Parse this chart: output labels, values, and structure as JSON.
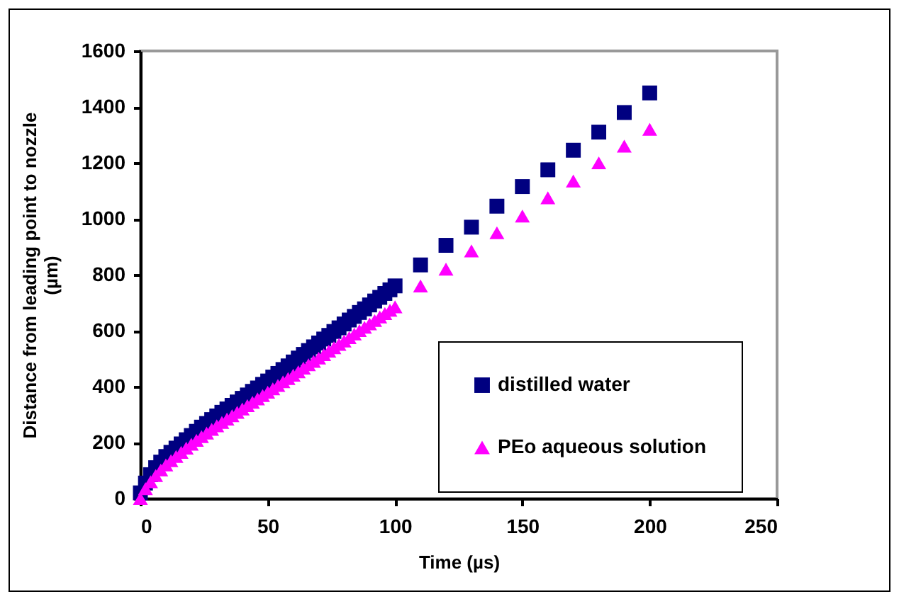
{
  "chart_data": {
    "type": "scatter",
    "xlabel": "Time (µs)",
    "ylabel": "Distance from leading point to nozzle\n(µm)",
    "x": [
      0,
      2,
      4,
      6,
      8,
      10,
      12,
      14,
      16,
      18,
      20,
      22,
      24,
      26,
      28,
      30,
      32,
      34,
      36,
      38,
      40,
      42,
      44,
      46,
      48,
      50,
      52,
      54,
      56,
      58,
      60,
      62,
      64,
      66,
      68,
      70,
      72,
      74,
      76,
      78,
      80,
      82,
      84,
      86,
      88,
      90,
      92,
      94,
      96,
      98,
      100,
      110,
      120,
      130,
      140,
      150,
      160,
      170,
      180,
      190,
      200
    ],
    "series": [
      {
        "name": "distilled water",
        "color": "#000080",
        "marker": "square",
        "values": [
          20,
          55,
          85,
          110,
          130,
          150,
          165,
          180,
          195,
          210,
          225,
          240,
          255,
          268,
          282,
          295,
          308,
          320,
          333,
          345,
          358,
          370,
          383,
          395,
          408,
          420,
          434,
          447,
          461,
          474,
          488,
          502,
          515,
          529,
          542,
          556,
          570,
          583,
          597,
          610,
          624,
          638,
          651,
          665,
          678,
          692,
          706,
          719,
          733,
          746,
          760,
          835,
          905,
          970,
          1045,
          1115,
          1175,
          1245,
          1310,
          1380,
          1450
        ]
      },
      {
        "name": "PEo aqueous solution",
        "color": "#ff00ff",
        "marker": "triangle",
        "values": [
          0,
          35,
          60,
          82,
          102,
          120,
          135,
          150,
          165,
          180,
          194,
          208,
          221,
          234,
          247,
          260,
          272,
          284,
          296,
          308,
          320,
          332,
          344,
          356,
          368,
          380,
          392,
          404,
          417,
          429,
          441,
          453,
          466,
          478,
          490,
          502,
          514,
          527,
          539,
          551,
          563,
          575,
          588,
          600,
          612,
          624,
          636,
          649,
          661,
          673,
          685,
          760,
          820,
          885,
          950,
          1010,
          1075,
          1135,
          1200,
          1260,
          1320
        ]
      }
    ],
    "xlim": [
      0,
      250
    ],
    "xticks": [
      0,
      50,
      100,
      150,
      200,
      250
    ],
    "ylim": [
      0,
      1600
    ],
    "yticks": [
      0,
      200,
      400,
      600,
      800,
      1000,
      1200,
      1400,
      1600
    ],
    "grid": false,
    "legend": "bottom right"
  }
}
